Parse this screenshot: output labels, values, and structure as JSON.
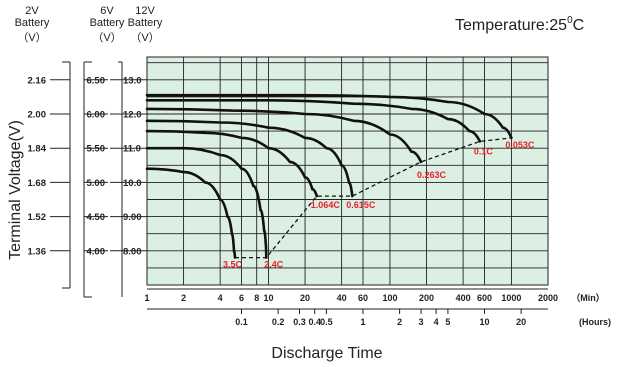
{
  "header": {
    "col1": {
      "top": "2V",
      "mid": "Battery",
      "unit": "（V）"
    },
    "col2": {
      "top": "6V",
      "mid": "Battery",
      "unit": "（V）"
    },
    "col3": {
      "top": "12V",
      "mid": "Battery",
      "unit": "（V）"
    }
  },
  "temperature": {
    "label": "Temperature:25",
    "sup": "0",
    "unit": "C"
  },
  "ylabel": "Terminal Voltage(V)",
  "xlabel": "Discharge Time",
  "min_unit_label": "（Min）",
  "hour_unit_label": "(Hours)",
  "colors": {
    "plot_bg": "#dcefe3",
    "grid": "#222222",
    "curve": "#111111",
    "label": "#e8202a"
  },
  "chart_data": {
    "type": "line",
    "x_scale": "log",
    "xlim_min": [
      1,
      2000
    ],
    "x_ticks_min": [
      "1",
      "2",
      "4",
      "6",
      "8",
      "10",
      "20",
      "40",
      "60",
      "100",
      "200",
      "400",
      "600",
      "1000",
      "2000"
    ],
    "x_ticks_hours": [
      "0.1",
      "0.2",
      "0.3",
      "0.4",
      "0.5",
      "1",
      "2",
      "3",
      "4",
      "5",
      "10",
      "20"
    ],
    "y_axes": [
      {
        "name": "2V",
        "ticks": [
          "2.16",
          "2.00",
          "1.84",
          "1.68",
          "1.52",
          "1.36"
        ]
      },
      {
        "name": "6V",
        "ticks": [
          "6.50",
          "6.00",
          "5.50",
          "5.00",
          "4.50",
          "4.00"
        ]
      },
      {
        "name": "12V",
        "ticks": [
          "13.0",
          "12.0",
          "11.0",
          "10.0",
          "9.00",
          "8.00"
        ]
      }
    ],
    "ylim_12v": [
      7.0,
      13.5
    ],
    "series": [
      {
        "name": "3.5C",
        "points": [
          [
            1,
            10.4
          ],
          [
            2,
            10.3
          ],
          [
            3,
            10.0
          ],
          [
            4,
            9.5
          ],
          [
            4.6,
            9.0
          ],
          [
            5.0,
            8.5
          ],
          [
            5.2,
            8.0
          ],
          [
            5.3,
            7.8
          ]
        ]
      },
      {
        "name": "2.4C",
        "points": [
          [
            1,
            11.0
          ],
          [
            2,
            11.0
          ],
          [
            4,
            10.8
          ],
          [
            6,
            10.4
          ],
          [
            7.5,
            9.9
          ],
          [
            8.6,
            9.2
          ],
          [
            9.2,
            8.6
          ],
          [
            9.5,
            8.2
          ],
          [
            9.6,
            7.8
          ]
        ]
      },
      {
        "name": "1.064C",
        "points": [
          [
            1,
            11.5
          ],
          [
            3,
            11.45
          ],
          [
            6,
            11.3
          ],
          [
            10,
            11.0
          ],
          [
            15,
            10.6
          ],
          [
            20,
            10.15
          ],
          [
            23,
            9.8
          ],
          [
            25,
            9.6
          ]
        ]
      },
      {
        "name": "0.615C",
        "points": [
          [
            1,
            11.8
          ],
          [
            4,
            11.75
          ],
          [
            10,
            11.6
          ],
          [
            20,
            11.3
          ],
          [
            30,
            11.0
          ],
          [
            40,
            10.5
          ],
          [
            46,
            10.0
          ],
          [
            49,
            9.6
          ]
        ]
      },
      {
        "name": "0.263C",
        "points": [
          [
            1,
            12.15
          ],
          [
            5,
            12.1
          ],
          [
            20,
            12.0
          ],
          [
            50,
            11.8
          ],
          [
            100,
            11.4
          ],
          [
            150,
            10.9
          ],
          [
            180,
            10.6
          ]
        ]
      },
      {
        "name": "0.1C",
        "points": [
          [
            1,
            12.4
          ],
          [
            10,
            12.4
          ],
          [
            50,
            12.3
          ],
          [
            150,
            12.15
          ],
          [
            300,
            11.85
          ],
          [
            450,
            11.5
          ],
          [
            550,
            11.2
          ]
        ]
      },
      {
        "name": "0.053C",
        "points": [
          [
            1,
            12.55
          ],
          [
            20,
            12.55
          ],
          [
            100,
            12.5
          ],
          [
            300,
            12.35
          ],
          [
            600,
            12.0
          ],
          [
            850,
            11.6
          ],
          [
            1000,
            11.3
          ]
        ]
      }
    ],
    "endpoint_line": [
      [
        5.3,
        7.8
      ],
      [
        9.6,
        7.8
      ],
      [
        25,
        9.6
      ],
      [
        49,
        9.6
      ],
      [
        180,
        10.6
      ],
      [
        550,
        11.2
      ],
      [
        1000,
        11.3
      ]
    ]
  }
}
